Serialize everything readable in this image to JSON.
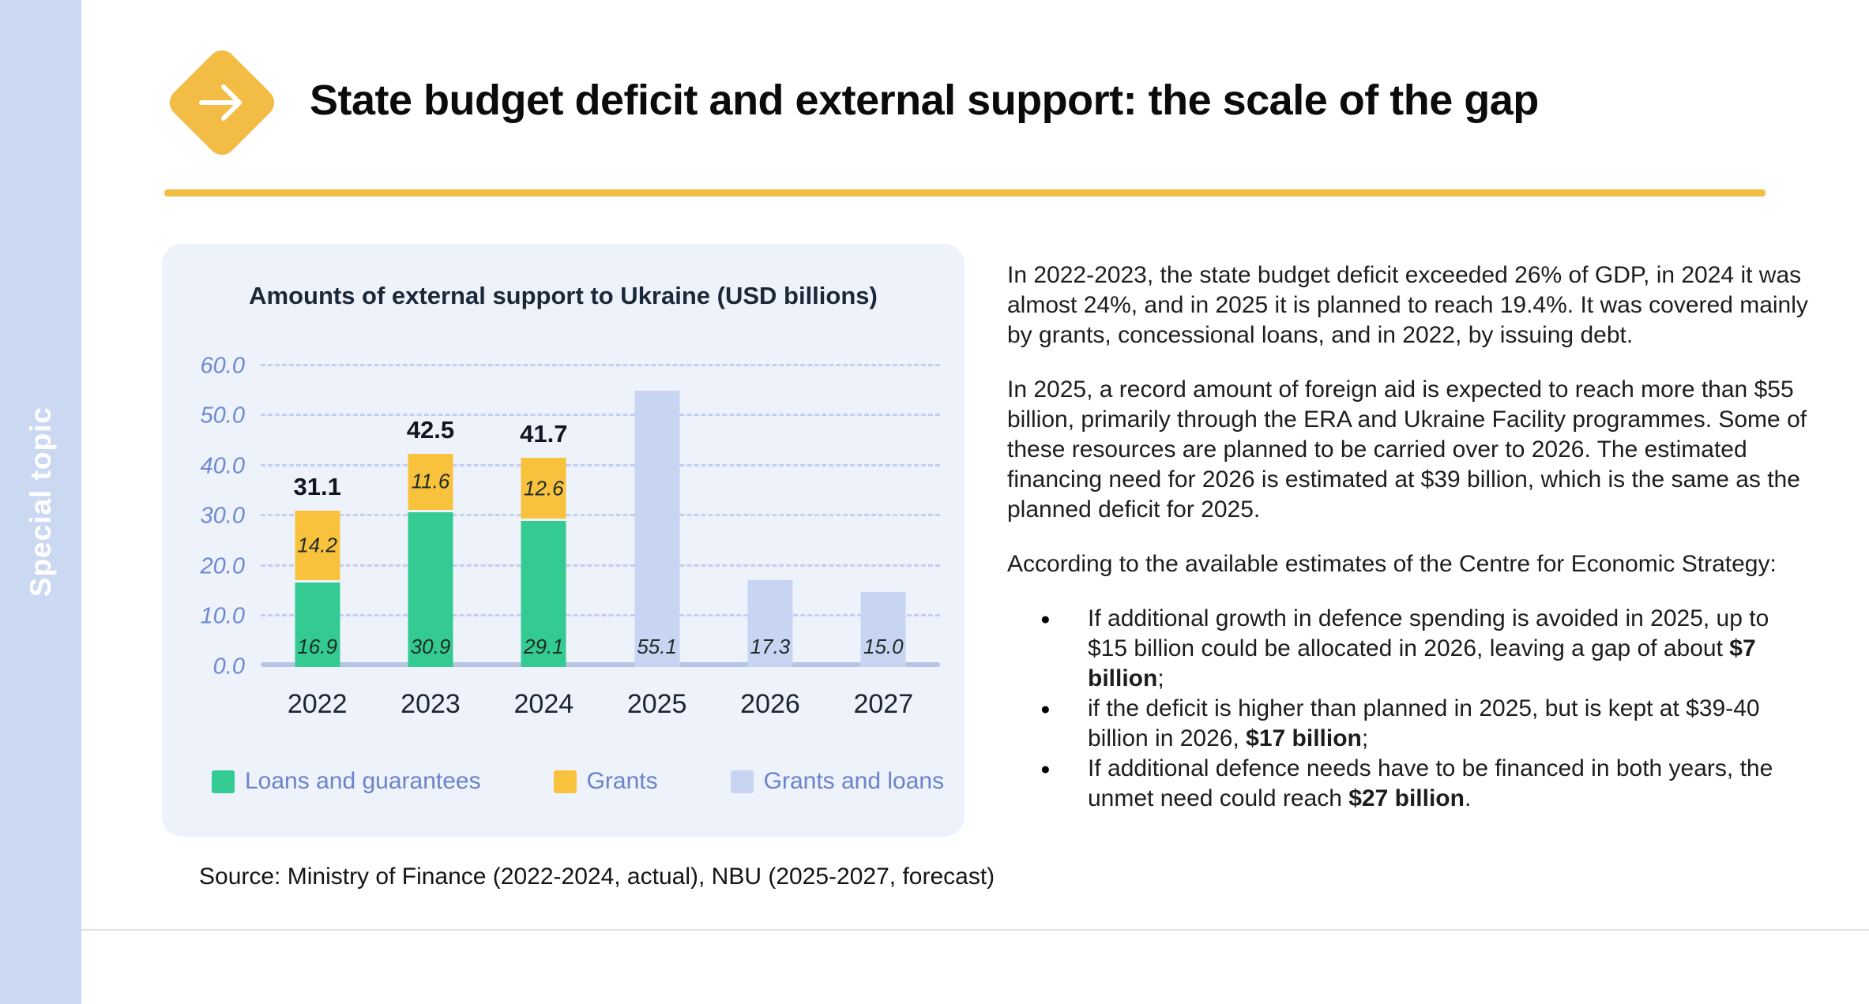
{
  "sidebar": {
    "label": "Special topic"
  },
  "header": {
    "title": "State budget deficit and external support: the scale of the gap"
  },
  "chart_data": {
    "type": "bar",
    "stacked": true,
    "title": "Amounts of external support to Ukraine (USD billions)",
    "categories": [
      "2022",
      "2023",
      "2024",
      "2025",
      "2026",
      "2027"
    ],
    "series": [
      {
        "name": "Loans and guarantees",
        "color": "#33CB92",
        "values": [
          16.9,
          30.9,
          29.1,
          null,
          null,
          null
        ]
      },
      {
        "name": "Grants",
        "color": "#F9C23C",
        "values": [
          14.2,
          11.6,
          12.6,
          null,
          null,
          null
        ]
      },
      {
        "name": "Grants and loans",
        "color": "#C7D5F3",
        "values": [
          null,
          null,
          null,
          55.1,
          17.3,
          15.0
        ]
      }
    ],
    "total_labels": [
      "31.1",
      "42.5",
      "41.7",
      "",
      "",
      ""
    ],
    "y_ticks": [
      0,
      10,
      20,
      30,
      40,
      50,
      60
    ],
    "y_tick_labels": [
      "0.0",
      "10.0",
      "20.0",
      "30.0",
      "40.0",
      "50.0",
      "60.0"
    ],
    "ylim": [
      0,
      65
    ],
    "grid": "horizontal-dashed",
    "legend_position": "bottom"
  },
  "source_note": "Source: Ministry of Finance (2022-2024, actual), NBU (2025-2027, forecast)",
  "body": {
    "paragraph1": "In 2022-2023, the state budget deficit exceeded 26% of GDP, in 2024 it was almost 24%, and in 2025 it is planned to reach 19.4%. It was covered mainly by grants, concessional loans, and in 2022, by issuing debt.",
    "paragraph2": "In 2025, a record amount of foreign aid is expected to reach more than $55 billion, primarily through the ERA and Ukraine Facility programmes. Some of these resources are planned to be carried over to 2026. The estimated financing need for 2026 is estimated at $39 billion, which is the same as the planned deficit for 2025.",
    "paragraph3": "According to the available estimates of the Centre for Economic Strategy:",
    "bullets": [
      {
        "pre": "If additional growth in defence spending is avoided in 2025, up to $15 billion could be allocated in 2026, leaving a gap of about ",
        "bold": "$7 billion",
        "post": ";"
      },
      {
        "pre": "if the deficit is higher than planned in 2025, but is kept at $39-40 billion in 2026, ",
        "bold": "$17 billion",
        "post": ";"
      },
      {
        "pre": "If additional defence needs have to be financed in both years, the unmet need could reach ",
        "bold": "$27 billion",
        "post": "."
      }
    ]
  },
  "colors": {
    "sidebar_bg": "#CBD8F2",
    "accent_yellow": "#F2BC45",
    "card_bg": "#EDF2FB",
    "bar_green": "#33CB92",
    "bar_yellow": "#F9C23C",
    "bar_blue": "#C7D5F3",
    "axis_text": "#6D89D4",
    "legend_text": "#6A83CB"
  }
}
